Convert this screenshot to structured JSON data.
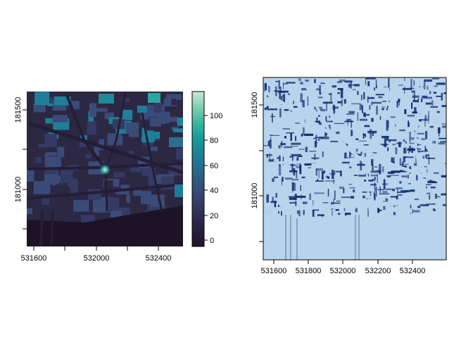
{
  "left_map": {
    "x_ticks": [
      "531600",
      "532000",
      "532400"
    ],
    "y_ticks": [
      "181000",
      "181500"
    ],
    "legend": {
      "ticks": [
        "0",
        "20",
        "40",
        "60",
        "80",
        "100"
      ],
      "colors": [
        "#1e1328",
        "#2b2546",
        "#37406b",
        "#2d5e87",
        "#1d7d97",
        "#159b9b",
        "#3ab79f",
        "#7fd0b0",
        "#c6ead4"
      ]
    },
    "colors": {
      "ground": "#2c2743",
      "building_low": "#343a63",
      "building_mid": "#3a4b78",
      "building_high": "#1f7f97",
      "street": "#241d36",
      "river": "#1c1426"
    }
  },
  "right_map": {
    "x_ticks": [
      "531600",
      "531800",
      "532000",
      "532200",
      "532400"
    ],
    "y_ticks": [
      "181000",
      "181500"
    ],
    "colors": {
      "background": "#b8d3ec",
      "shadow": "#0f2f6e"
    }
  }
}
